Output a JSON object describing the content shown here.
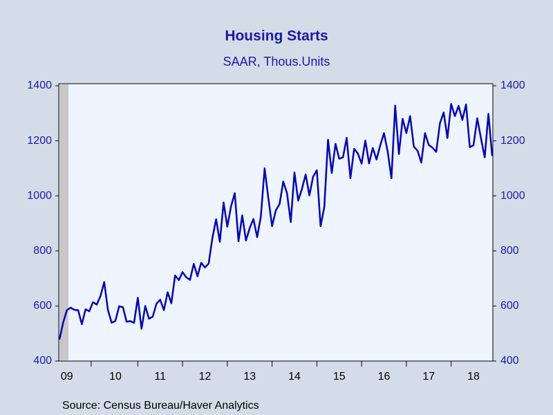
{
  "chart_data": {
    "type": "line",
    "title": "Housing Starts",
    "subtitle": "SAAR, Thous.Units",
    "source": "Source:  Census Bureau/Haver Analytics",
    "categories": [
      null,
      null,
      "09",
      null,
      null,
      null,
      null,
      null,
      null,
      null,
      null,
      null,
      null,
      null,
      null,
      "10",
      null,
      null,
      null,
      null,
      null,
      null,
      null,
      null,
      null,
      null,
      null,
      "11",
      null,
      null,
      null,
      null,
      null,
      null,
      null,
      null,
      null,
      null,
      null,
      "12",
      null,
      null,
      null,
      null,
      null,
      null,
      null,
      null,
      null,
      null,
      null,
      "13",
      null,
      null,
      null,
      null,
      null,
      null,
      null,
      null,
      null,
      null,
      null,
      "14",
      null,
      null,
      null,
      null,
      null,
      null,
      null,
      null,
      null,
      null,
      null,
      "15",
      null,
      null,
      null,
      null,
      null,
      null,
      null,
      null,
      null,
      null,
      null,
      "16",
      null,
      null,
      null,
      null,
      null,
      null,
      null,
      null,
      null,
      null,
      null,
      "17",
      null,
      null,
      null,
      null,
      null,
      null,
      null,
      null,
      null,
      null,
      null,
      "18",
      null,
      null,
      null,
      null,
      null
    ],
    "series": [
      {
        "name": "Housing Starts",
        "color": "#0000c0",
        "values": [
          478,
          540,
          585,
          594,
          586,
          585,
          534,
          588,
          581,
          614,
          605,
          636,
          687,
          585,
          539,
          546,
          599,
          596,
          543,
          545,
          539,
          630,
          517,
          600,
          554,
          561,
          608,
          623,
          585,
          650,
          610,
          711,
          694,
          723,
          704,
          695,
          753,
          708,
          757,
          740,
          754,
          847,
          915,
          833,
          976,
          888,
          962,
          1010,
          835,
          929,
          838,
          883,
          916,
          850,
          926,
          1100,
          991,
          890,
          947,
          970,
          1052,
          1010,
          905,
          1085,
          983,
          1025,
          1078,
          1002,
          1070,
          1093,
          890,
          960,
          1204,
          1083,
          1189,
          1135,
          1140,
          1211,
          1064,
          1171,
          1154,
          1117,
          1201,
          1118,
          1174,
          1132,
          1184,
          1228,
          1160,
          1064,
          1328,
          1152,
          1280,
          1228,
          1290,
          1179,
          1164,
          1121,
          1228,
          1185,
          1175,
          1160,
          1264,
          1303,
          1210,
          1334,
          1290,
          1327,
          1276,
          1332,
          1177,
          1184,
          1282,
          1209,
          1140,
          1298,
          1145
        ]
      }
    ],
    "ylim": [
      400,
      1400
    ],
    "yticks": [
      400,
      600,
      800,
      1000,
      1200,
      1400
    ],
    "y2lim": [
      400,
      1400
    ],
    "y2ticks": [
      400,
      600,
      800,
      1000,
      1200,
      1400
    ]
  }
}
